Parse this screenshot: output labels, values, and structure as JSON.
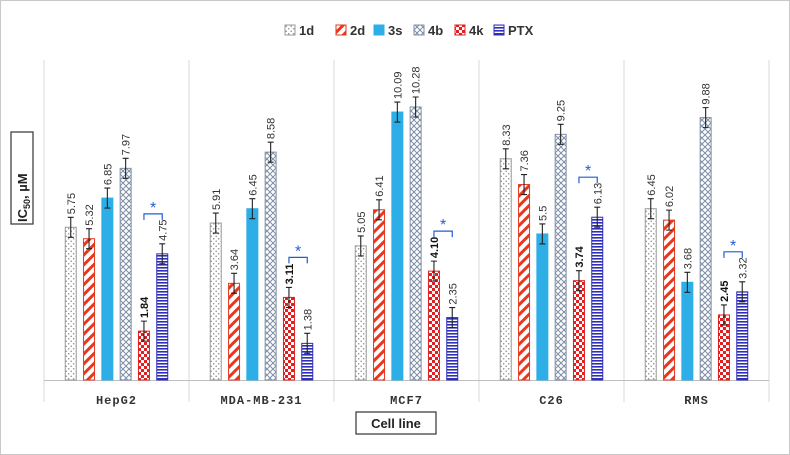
{
  "chart_data": {
    "type": "bar",
    "title": "",
    "xlabel": "Cell line",
    "ylabel": "IC50, µM",
    "ylabel_main": "IC",
    "ylabel_sub": "50",
    "ylabel_unit": ", µM",
    "ylim": [
      0,
      11
    ],
    "categories": [
      "HepG2",
      "MDA-MB-231",
      "MCF7",
      "C26",
      "RMS"
    ],
    "series": [
      {
        "name": "1d",
        "pattern": "dots",
        "color": "#9a9a9a",
        "values": [
          5.75,
          5.91,
          5.05,
          8.33,
          6.45
        ]
      },
      {
        "name": "2d",
        "pattern": "diag-red",
        "color": "#e8371f",
        "values": [
          5.32,
          3.64,
          6.41,
          7.36,
          6.02
        ]
      },
      {
        "name": "3s",
        "pattern": "solid-cyan",
        "color": "#2eaee6",
        "values": [
          6.85,
          6.45,
          10.09,
          5.5,
          3.68
        ]
      },
      {
        "name": "4b",
        "pattern": "wave",
        "color": "#7f8fa6",
        "values": [
          7.97,
          8.58,
          10.28,
          9.25,
          9.88
        ]
      },
      {
        "name": "4k",
        "pattern": "checker-red",
        "color": "#e02020",
        "values": [
          1.84,
          3.11,
          4.1,
          3.74,
          2.45
        ]
      },
      {
        "name": "PTX",
        "pattern": "hstripe-blue",
        "color": "#2e2eb8",
        "values": [
          4.75,
          1.38,
          2.35,
          6.13,
          3.32
        ]
      }
    ],
    "value_labels": [
      [
        "5.75",
        "5.32",
        "6.85",
        "7.97",
        "1.84",
        "4.75"
      ],
      [
        "5.91",
        "3.64",
        "6.45",
        "8.58",
        "3.11",
        "1.38"
      ],
      [
        "5.05",
        "6.41",
        "10.09",
        "10.28",
        "4.10",
        "2.35"
      ],
      [
        "8.33",
        "7.36",
        "5.5",
        "9.25",
        "3.74",
        "6.13"
      ],
      [
        "6.45",
        "6.02",
        "3.68",
        "9.88",
        "2.45",
        "3.32"
      ]
    ],
    "bold_series": "4k",
    "significance_marker": "*",
    "significance_pairs": [
      [
        "4k",
        "PTX"
      ]
    ],
    "legend_position": "top",
    "grid": false
  }
}
